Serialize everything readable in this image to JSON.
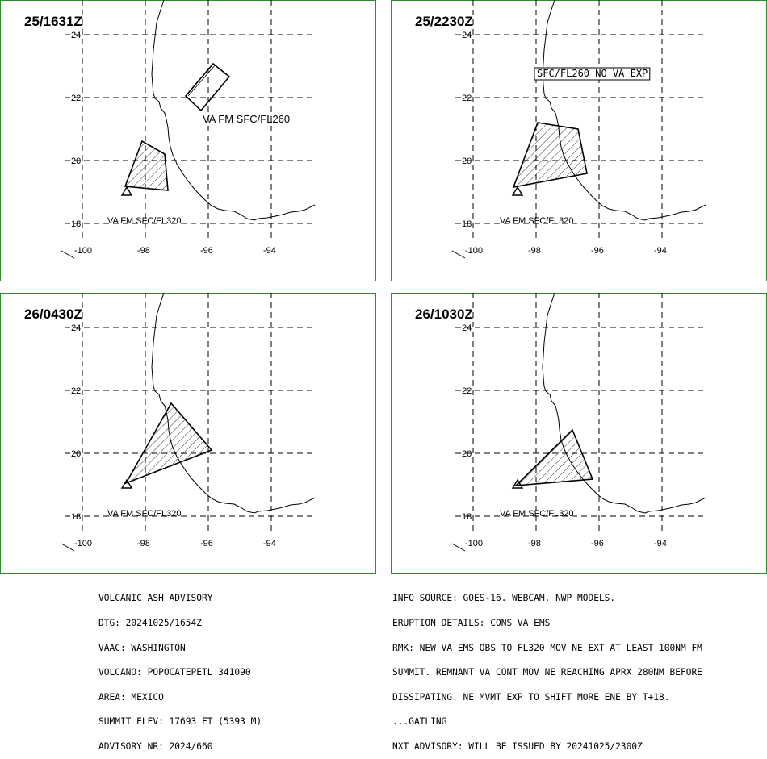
{
  "panels": [
    {
      "time": "25/1631Z",
      "lat_labels": [
        "24",
        "22",
        "20",
        "18"
      ],
      "lon_labels": [
        "-100",
        "-98",
        "-96",
        "-94"
      ],
      "labels": [
        "VA FM SFC/FL260",
        "VA FM SFC/FL320"
      ]
    },
    {
      "time": "25/2230Z",
      "lat_labels": [
        "24",
        "22",
        "20",
        "18"
      ],
      "lon_labels": [
        "-100",
        "-98",
        "-96",
        "-94"
      ],
      "labels": [
        "SFC/FL260 NO VA EXP",
        "VA FM SFC/FL320"
      ]
    },
    {
      "time": "26/0430Z",
      "lat_labels": [
        "24",
        "22",
        "20",
        "18"
      ],
      "lon_labels": [
        "-100",
        "-98",
        "-96",
        "-94"
      ],
      "labels": [
        "VA FM SFC/FL320"
      ]
    },
    {
      "time": "26/1030Z",
      "lat_labels": [
        "24",
        "22",
        "20",
        "18"
      ],
      "lon_labels": [
        "-100",
        "-98",
        "-96",
        "-94"
      ],
      "labels": [
        "VA FM SFC/FL320"
      ]
    }
  ],
  "advisory_left": [
    "VOLCANIC ASH ADVISORY",
    "DTG: 20241025/1654Z",
    "VAAC: WASHINGTON",
    "VOLCANO: POPOCATEPETL 341090",
    "AREA: MEXICO",
    "SUMMIT ELEV: 17693 FT (5393 M)",
    "ADVISORY NR: 2024/660"
  ],
  "advisory_right": [
    "INFO SOURCE: GOES-16. WEBCAM. NWP MODELS.",
    "ERUPTION DETAILS: CONS VA EMS",
    "RMK: NEW VA EMS OBS TO FL320 MOV NE EXT AT LEAST 100NM FM",
    "SUMMIT. REMNANT VA CONT MOV NE REACHING APRX 280NM BEFORE",
    "DISSIPATING. NE MVMT EXP TO SHIFT MORE ENE BY T+18.",
    "...GATLING",
    "NXT ADVISORY: WILL BE ISSUED BY 20241025/2300Z"
  ],
  "colors": {
    "frame": "#2e8b2e",
    "ink": "#000000"
  }
}
